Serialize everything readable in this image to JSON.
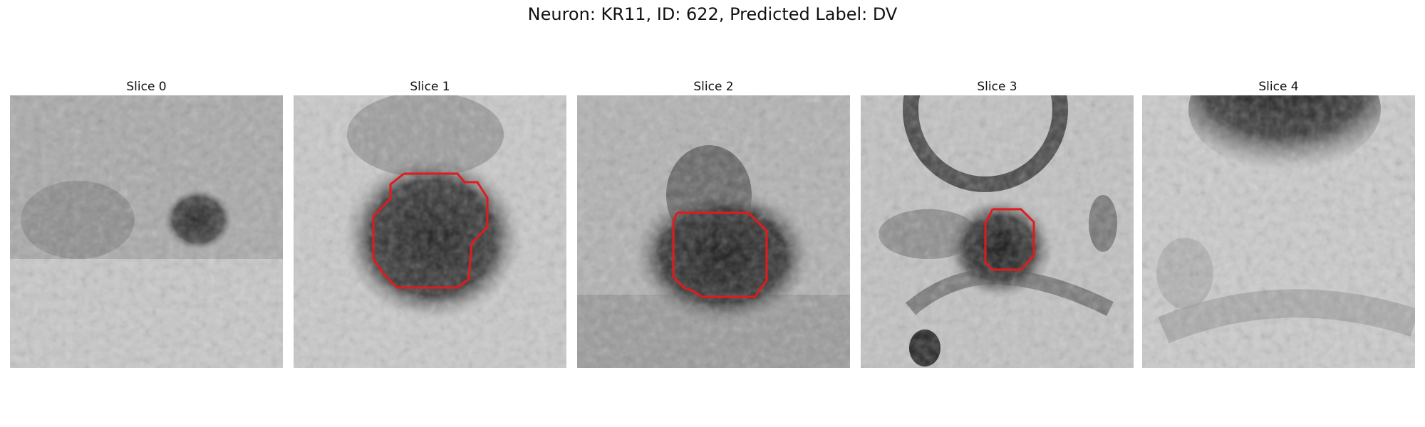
{
  "figure": {
    "title": "Neuron: KR11, ID: 622, Predicted Label: DV"
  },
  "panels": [
    {
      "label": "Slice 0",
      "contour": false
    },
    {
      "label": "Slice 1",
      "contour": true
    },
    {
      "label": "Slice 2",
      "contour": true
    },
    {
      "label": "Slice 3",
      "contour": true
    },
    {
      "label": "Slice 4",
      "contour": false
    }
  ],
  "colors": {
    "contour": "#e31a1c",
    "background": "#ffffff"
  }
}
